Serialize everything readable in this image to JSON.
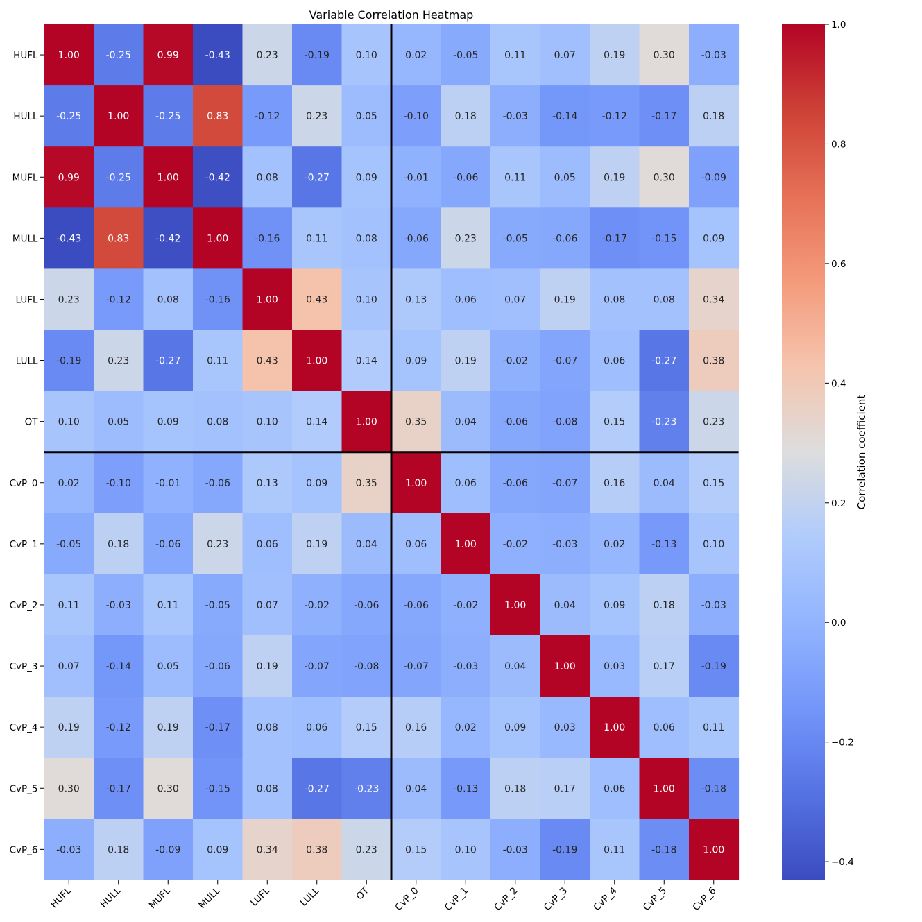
{
  "chart_data": {
    "type": "heatmap",
    "title": "Variable Correlation Heatmap",
    "labels": [
      "HUFL",
      "HULL",
      "MUFL",
      "MULL",
      "LUFL",
      "LULL",
      "OT",
      "CvP_0",
      "CvP_1",
      "CvP_2",
      "CvP_3",
      "CvP_4",
      "CvP_5",
      "CvP_6"
    ],
    "values": [
      [
        1.0,
        -0.25,
        0.99,
        -0.43,
        0.23,
        -0.19,
        0.1,
        0.02,
        -0.05,
        0.11,
        0.07,
        0.19,
        0.3,
        -0.03
      ],
      [
        -0.25,
        1.0,
        -0.25,
        0.83,
        -0.12,
        0.23,
        0.05,
        -0.1,
        0.18,
        -0.03,
        -0.14,
        -0.12,
        -0.17,
        0.18
      ],
      [
        0.99,
        -0.25,
        1.0,
        -0.42,
        0.08,
        -0.27,
        0.09,
        -0.01,
        -0.06,
        0.11,
        0.05,
        0.19,
        0.3,
        -0.09
      ],
      [
        -0.43,
        0.83,
        -0.42,
        1.0,
        -0.16,
        0.11,
        0.08,
        -0.06,
        0.23,
        -0.05,
        -0.06,
        -0.17,
        -0.15,
        0.09
      ],
      [
        0.23,
        -0.12,
        0.08,
        -0.16,
        1.0,
        0.43,
        0.1,
        0.13,
        0.06,
        0.07,
        0.19,
        0.08,
        0.08,
        0.34
      ],
      [
        -0.19,
        0.23,
        -0.27,
        0.11,
        0.43,
        1.0,
        0.14,
        0.09,
        0.19,
        -0.02,
        -0.07,
        0.06,
        -0.27,
        0.38
      ],
      [
        0.1,
        0.05,
        0.09,
        0.08,
        0.1,
        0.14,
        1.0,
        0.35,
        0.04,
        -0.06,
        -0.08,
        0.15,
        -0.23,
        0.23
      ],
      [
        0.02,
        -0.1,
        -0.01,
        -0.06,
        0.13,
        0.09,
        0.35,
        1.0,
        0.06,
        -0.06,
        -0.07,
        0.16,
        0.04,
        0.15
      ],
      [
        -0.05,
        0.18,
        -0.06,
        0.23,
        0.06,
        0.19,
        0.04,
        0.06,
        1.0,
        -0.02,
        -0.03,
        0.02,
        -0.13,
        0.1
      ],
      [
        0.11,
        -0.03,
        0.11,
        -0.05,
        0.07,
        -0.02,
        -0.06,
        -0.06,
        -0.02,
        1.0,
        0.04,
        0.09,
        0.18,
        -0.03
      ],
      [
        0.07,
        -0.14,
        0.05,
        -0.06,
        0.19,
        -0.07,
        -0.08,
        -0.07,
        -0.03,
        0.04,
        1.0,
        0.03,
        0.17,
        -0.19
      ],
      [
        0.19,
        -0.12,
        0.19,
        -0.17,
        0.08,
        0.06,
        0.15,
        0.16,
        0.02,
        0.09,
        0.03,
        1.0,
        0.06,
        0.11
      ],
      [
        0.3,
        -0.17,
        0.3,
        -0.15,
        0.08,
        -0.27,
        -0.23,
        0.04,
        -0.13,
        0.18,
        0.17,
        0.06,
        1.0,
        -0.18
      ],
      [
        -0.03,
        0.18,
        -0.09,
        0.09,
        0.34,
        0.38,
        0.23,
        0.15,
        0.1,
        -0.03,
        -0.19,
        0.11,
        -0.18,
        1.0
      ]
    ],
    "colormap": "coolwarm",
    "vmin": -0.43,
    "vmax": 1.0,
    "colorbar": {
      "label": "Correlation coefficient",
      "ticks": [
        1.0,
        0.8,
        0.6,
        0.4,
        0.2,
        0.0,
        -0.2,
        -0.4
      ],
      "tick_labels": [
        "1.0",
        "0.8",
        "0.6",
        "0.4",
        "0.2",
        "0.0",
        "−0.2",
        "−0.4"
      ]
    },
    "divider_after_index": 6,
    "annotation_format": "0.00"
  }
}
